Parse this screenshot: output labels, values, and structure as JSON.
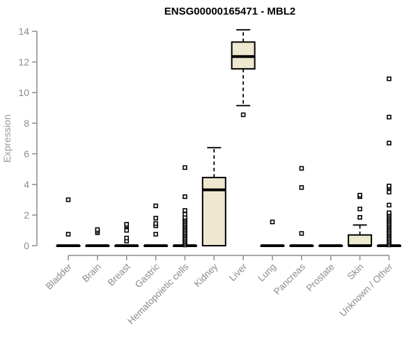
{
  "figure": {
    "title": "ENSG00000165471 - MBL2"
  },
  "chart_data": {
    "type": "boxplot",
    "title": "ENSG00000165471 - MBL2",
    "xlabel": "",
    "ylabel": "Expression",
    "ylim": [
      0,
      14
    ],
    "yticks": [
      0,
      2,
      4,
      6,
      8,
      10,
      12,
      14
    ],
    "grid": false,
    "legend": false,
    "categories": [
      "Bladder",
      "Brain",
      "Breast",
      "Gastric",
      "Hematopoietic cells",
      "Kidney",
      "Liver",
      "Lung",
      "Pancreas",
      "Prostate",
      "Skin",
      "Unknown / Other"
    ],
    "series": [
      {
        "category": "Bladder",
        "q1": 0,
        "median": 0,
        "q3": 0,
        "whisker_low": 0,
        "whisker_high": 0,
        "outliers": [
          0.75,
          3.0
        ]
      },
      {
        "category": "Brain",
        "q1": 0,
        "median": 0,
        "q3": 0,
        "whisker_low": 0,
        "whisker_high": 0,
        "outliers": [
          0.85,
          0.95,
          1.05
        ]
      },
      {
        "category": "Breast",
        "q1": 0,
        "median": 0,
        "q3": 0,
        "whisker_low": 0,
        "whisker_high": 0,
        "outliers": [
          0.3,
          0.5,
          1.0,
          1.3,
          1.4
        ]
      },
      {
        "category": "Gastric",
        "q1": 0,
        "median": 0,
        "q3": 0,
        "whisker_low": 0,
        "whisker_high": 0,
        "outliers": [
          0.75,
          1.3,
          1.45,
          1.8,
          2.6
        ]
      },
      {
        "category": "Hematopoietic cells",
        "q1": 0,
        "median": 0,
        "q3": 0,
        "whisker_low": 0,
        "whisker_high": 0,
        "outliers": [
          0.05,
          0.15,
          0.25,
          0.35,
          0.45,
          0.55,
          0.65,
          0.75,
          0.85,
          0.95,
          1.05,
          1.15,
          1.25,
          1.35,
          1.45,
          1.55,
          1.65,
          1.75,
          1.85,
          2.05,
          2.3,
          3.2,
          5.1
        ]
      },
      {
        "category": "Kidney",
        "q1": 0,
        "median": 3.65,
        "q3": 4.45,
        "whisker_low": 0,
        "whisker_high": 6.4,
        "outliers": []
      },
      {
        "category": "Liver",
        "q1": 11.55,
        "median": 12.35,
        "q3": 13.3,
        "whisker_low": 9.15,
        "whisker_high": 14.1,
        "outliers": [
          8.55
        ]
      },
      {
        "category": "Lung",
        "q1": 0,
        "median": 0,
        "q3": 0,
        "whisker_low": 0,
        "whisker_high": 0,
        "outliers": [
          1.55
        ]
      },
      {
        "category": "Pancreas",
        "q1": 0,
        "median": 0,
        "q3": 0,
        "whisker_low": 0,
        "whisker_high": 0,
        "outliers": [
          0.8,
          3.8,
          5.05
        ]
      },
      {
        "category": "Prostate",
        "q1": 0,
        "median": 0,
        "q3": 0,
        "whisker_low": 0,
        "whisker_high": 0,
        "outliers": []
      },
      {
        "category": "Skin",
        "q1": 0,
        "median": 0,
        "q3": 0.7,
        "whisker_low": 0,
        "whisker_high": 1.35,
        "outliers": [
          1.85,
          2.4,
          3.2,
          3.3
        ]
      },
      {
        "category": "Unknown / Other",
        "q1": 0,
        "median": 0,
        "q3": 0,
        "whisker_low": 0,
        "whisker_high": 0,
        "outliers": [
          0.05,
          0.15,
          0.25,
          0.35,
          0.45,
          0.55,
          0.65,
          0.75,
          0.85,
          0.95,
          1.05,
          1.15,
          1.25,
          1.35,
          1.45,
          1.55,
          1.65,
          1.75,
          1.85,
          1.95,
          2.05,
          2.15,
          2.65,
          3.5,
          3.8,
          3.9,
          6.7,
          8.4,
          10.9
        ]
      }
    ],
    "colors": {
      "box_fill": "#EEE8D0",
      "box_border": "#000000",
      "median": "#000000",
      "whisker": "#000000",
      "outlier": "#000000",
      "axis": "#8B8B8B",
      "tick_label": "#8B8B8B",
      "axis_label": "#9A9A9A",
      "title": "#000000",
      "background": "#FFFFFF"
    }
  }
}
